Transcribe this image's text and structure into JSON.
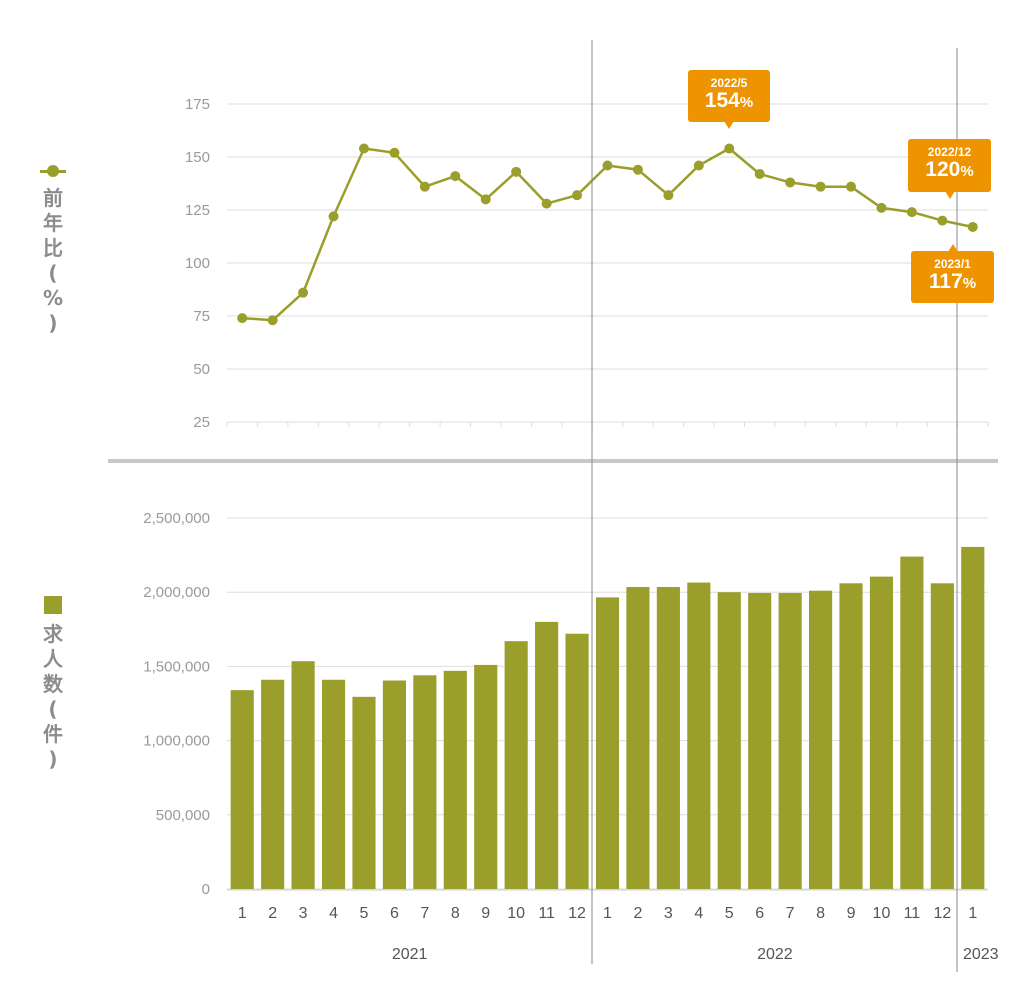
{
  "chart_data": [
    {
      "type": "line",
      "ylabel": "前年比(%)",
      "ylim": [
        25,
        175
      ],
      "yticks": [
        "25",
        "50",
        "75",
        "100",
        "125",
        "150",
        "175"
      ],
      "categories": [
        "1",
        "2",
        "3",
        "4",
        "5",
        "6",
        "7",
        "8",
        "9",
        "10",
        "11",
        "12",
        "1",
        "2",
        "3",
        "4",
        "5",
        "6",
        "7",
        "8",
        "9",
        "10",
        "11",
        "12",
        "1"
      ],
      "series": [
        {
          "values": [
            74,
            73,
            86,
            122,
            154,
            152,
            136,
            141,
            130,
            143,
            128,
            132,
            146,
            144,
            132,
            146,
            154,
            142,
            138,
            136,
            136,
            126,
            124,
            120,
            117
          ]
        }
      ],
      "grid": true,
      "color": "#9a9e2b",
      "annotations": [
        {
          "date": "2022/5",
          "value": "154",
          "unit": "%"
        },
        {
          "date": "2022/12",
          "value": "120",
          "unit": "%"
        },
        {
          "date": "2023/1",
          "value": "117",
          "unit": "%"
        }
      ]
    },
    {
      "type": "bar",
      "ylabel": "求人数(件)",
      "ylim": [
        0,
        2500000
      ],
      "yticks": [
        "0",
        "500,000",
        "1,000,000",
        "1,500,000",
        "2,000,000",
        "2,500,000"
      ],
      "categories": [
        "1",
        "2",
        "3",
        "4",
        "5",
        "6",
        "7",
        "8",
        "9",
        "10",
        "11",
        "12",
        "1",
        "2",
        "3",
        "4",
        "5",
        "6",
        "7",
        "8",
        "9",
        "10",
        "11",
        "12",
        "1"
      ],
      "series": [
        {
          "values": [
            1340000,
            1410000,
            1535000,
            1410000,
            1295000,
            1405000,
            1440000,
            1470000,
            1510000,
            1670000,
            1800000,
            1720000,
            1965000,
            2035000,
            2035000,
            2065000,
            2000000,
            1995000,
            1995000,
            2010000,
            2060000,
            2105000,
            2240000,
            2060000,
            2305000
          ]
        }
      ],
      "grid": true,
      "color": "#9a9e2b",
      "years": [
        "2021",
        "2022",
        "2023"
      ]
    }
  ],
  "labels": {
    "line_axis_title": [
      "前",
      "年",
      "比",
      "(",
      "%",
      ")"
    ],
    "bar_axis_title": [
      "求",
      "人",
      "数",
      "(",
      "件",
      ")"
    ]
  },
  "colors": {
    "series": "#9a9e2b",
    "callout": "#ee9400",
    "grid": "#dedede",
    "separator": "#c8c8c8",
    "axis_text": "#9a9a9a"
  }
}
